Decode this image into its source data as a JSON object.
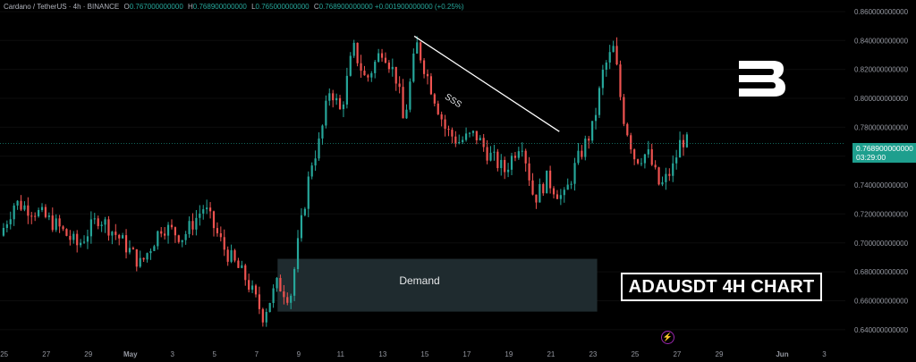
{
  "header": {
    "symbol": "Cardano / TetherUS · 4h · BINANCE",
    "open_label": "O",
    "open": "0.767000000000",
    "high_label": "H",
    "high": "0.768900000000",
    "low_label": "L",
    "low": "0.765000000000",
    "close_label": "C",
    "close": "0.768900000000",
    "change": "+0.001900000000 (+0.25%)"
  },
  "price_tag": {
    "price": "0.768900000000",
    "countdown": "03:29:00"
  },
  "caption": "ADAUSDT 4H CHART",
  "colors": {
    "up": "#26a69a",
    "down": "#ef5350",
    "background": "#000000",
    "demand_zone": "#1f2b2f",
    "price_tag": "#1e9f8e"
  },
  "logo_icon": "b-logo-icon",
  "bolt_icon": "lightning-icon",
  "chart_data": {
    "type": "candlestick",
    "symbol": "ADAUSDT",
    "timeframe": "4h",
    "y_axis": {
      "ticks": [
        0.64,
        0.66,
        0.68,
        0.7,
        0.72,
        0.74,
        0.76,
        0.78,
        0.8,
        0.82,
        0.84,
        0.86
      ],
      "tick_labels": [
        "0.640000000000",
        "0.660000000000",
        "0.680000000000",
        "0.700000000000",
        "0.720000000000",
        "0.740000000000",
        "0.760000000000",
        "0.780000000000",
        "0.800000000000",
        "0.820000000000",
        "0.840000000000",
        "0.860000000000"
      ],
      "range": [
        0.63,
        0.868
      ]
    },
    "x_axis": {
      "tick_labels": [
        "25",
        "27",
        "29",
        "May",
        "3",
        "5",
        "7",
        "9",
        "11",
        "13",
        "15",
        "17",
        "19",
        "21",
        "23",
        "25",
        "27",
        "29",
        "Jun",
        "3"
      ],
      "range_days": [
        -6.2,
        34.0
      ]
    },
    "last_price": 0.7689,
    "close_path": [
      [
        -6.2,
        0.705
      ],
      [
        -5.5,
        0.728
      ],
      [
        -4.5,
        0.722
      ],
      [
        -3.5,
        0.712
      ],
      [
        -2.5,
        0.698
      ],
      [
        -1.5,
        0.718
      ],
      [
        -0.5,
        0.703
      ],
      [
        0.5,
        0.685
      ],
      [
        1.5,
        0.712
      ],
      [
        2.5,
        0.704
      ],
      [
        3.5,
        0.725
      ],
      [
        4.5,
        0.695
      ],
      [
        5.5,
        0.675
      ],
      [
        6.3,
        0.65
      ],
      [
        7.0,
        0.672
      ],
      [
        7.6,
        0.662
      ],
      [
        8.0,
        0.702
      ],
      [
        8.6,
        0.755
      ],
      [
        9.0,
        0.77
      ],
      [
        9.5,
        0.808
      ],
      [
        10.0,
        0.79
      ],
      [
        10.6,
        0.835
      ],
      [
        11.2,
        0.812
      ],
      [
        12.0,
        0.835
      ],
      [
        12.7,
        0.812
      ],
      [
        13.0,
        0.782
      ],
      [
        13.6,
        0.838
      ],
      [
        14.2,
        0.812
      ],
      [
        15.0,
        0.778
      ],
      [
        15.6,
        0.77
      ],
      [
        16.4,
        0.775
      ],
      [
        17.0,
        0.762
      ],
      [
        17.8,
        0.75
      ],
      [
        18.6,
        0.772
      ],
      [
        19.2,
        0.73
      ],
      [
        19.8,
        0.744
      ],
      [
        20.6,
        0.73
      ],
      [
        21.2,
        0.755
      ],
      [
        22.0,
        0.78
      ],
      [
        22.5,
        0.82
      ],
      [
        23.0,
        0.835
      ],
      [
        23.4,
        0.79
      ],
      [
        24.0,
        0.758
      ],
      [
        24.6,
        0.762
      ],
      [
        25.2,
        0.738
      ],
      [
        25.8,
        0.752
      ],
      [
        26.2,
        0.772
      ],
      [
        26.5,
        0.7689
      ]
    ],
    "annotations": {
      "demand_zone": {
        "label": "Demand",
        "x_start_day": 7.0,
        "x_end_day": 22.2,
        "y_low": 0.6525,
        "y_high": 0.689
      },
      "trendline": {
        "label": "SSS",
        "start": [
          13.5,
          0.843
        ],
        "end": [
          20.4,
          0.777
        ]
      }
    }
  }
}
